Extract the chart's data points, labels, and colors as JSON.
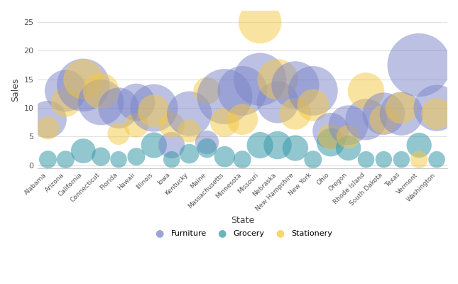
{
  "title": "",
  "xlabel": "State",
  "ylabel": "Sales",
  "ylim": [
    -0.5,
    27
  ],
  "xlim": [
    -0.6,
    22.6
  ],
  "yticks": [
    0,
    5,
    10,
    15,
    20,
    25
  ],
  "bg_color": "#ffffff",
  "grid_color": "#e0e0e0",
  "categories": {
    "Furniture": {
      "color": "#7b85c9",
      "alpha": 0.5
    },
    "Grocery": {
      "color": "#3a9aaa",
      "alpha": 0.55
    },
    "Stationery": {
      "color": "#f5c842",
      "alpha": 0.5
    }
  },
  "states": [
    "Alabama",
    "Arizona",
    "California",
    "Connecticut",
    "Florida",
    "Hawaii",
    "Illinois",
    "Iowa",
    "Kentucky",
    "Maine",
    "Massachusetts",
    "Minnesota",
    "Missouri",
    "Nebraska",
    "New Hampshire",
    "New York",
    "Ohio",
    "Oregon",
    "Rhode Island",
    "South Dakota",
    "Texas",
    "Vermont",
    "Washington"
  ],
  "bubbles": [
    {
      "state": "Alabama",
      "category": "Furniture",
      "sales": 8.0,
      "size": 80
    },
    {
      "state": "Alabama",
      "category": "Grocery",
      "sales": 1.0,
      "size": 18
    },
    {
      "state": "Alabama",
      "category": "Stationery",
      "sales": 6.5,
      "size": 30
    },
    {
      "state": "Arizona",
      "category": "Furniture",
      "sales": 13.0,
      "size": 100
    },
    {
      "state": "Arizona",
      "category": "Grocery",
      "sales": 1.0,
      "size": 18
    },
    {
      "state": "Arizona",
      "category": "Stationery",
      "sales": 11.0,
      "size": 50
    },
    {
      "state": "California",
      "category": "Furniture",
      "sales": 14.0,
      "size": 160
    },
    {
      "state": "California",
      "category": "Grocery",
      "sales": 2.5,
      "size": 35
    },
    {
      "state": "California",
      "category": "Stationery",
      "sales": 15.0,
      "size": 90
    },
    {
      "state": "Connecticut",
      "category": "Furniture",
      "sales": 11.0,
      "size": 120
    },
    {
      "state": "Connecticut",
      "category": "Grocery",
      "sales": 1.5,
      "size": 20
    },
    {
      "state": "Connecticut",
      "category": "Stationery",
      "sales": 13.0,
      "size": 75
    },
    {
      "state": "Florida",
      "category": "Furniture",
      "sales": 10.0,
      "size": 95
    },
    {
      "state": "Florida",
      "category": "Grocery",
      "sales": 1.0,
      "size": 16
    },
    {
      "state": "Florida",
      "category": "Stationery",
      "sales": 5.5,
      "size": 28
    },
    {
      "state": "Hawaii",
      "category": "Furniture",
      "sales": 11.0,
      "size": 80
    },
    {
      "state": "Hawaii",
      "category": "Grocery",
      "sales": 1.5,
      "size": 18
    },
    {
      "state": "Hawaii",
      "category": "Stationery",
      "sales": 7.0,
      "size": 35
    },
    {
      "state": "Illinois",
      "category": "Furniture",
      "sales": 10.0,
      "size": 130
    },
    {
      "state": "Illinois",
      "category": "Grocery",
      "sales": 3.5,
      "size": 38
    },
    {
      "state": "Illinois",
      "category": "Stationery",
      "sales": 9.5,
      "size": 60
    },
    {
      "state": "Iowa",
      "category": "Furniture",
      "sales": 3.5,
      "size": 40
    },
    {
      "state": "Iowa",
      "category": "Grocery",
      "sales": 1.0,
      "size": 16
    },
    {
      "state": "Iowa",
      "category": "Stationery",
      "sales": 7.0,
      "size": 38
    },
    {
      "state": "Kentucky",
      "category": "Furniture",
      "sales": 9.0,
      "size": 115
    },
    {
      "state": "Kentucky",
      "category": "Grocery",
      "sales": 2.0,
      "size": 22
    },
    {
      "state": "Kentucky",
      "category": "Stationery",
      "sales": 6.0,
      "size": 30
    },
    {
      "state": "Maine",
      "category": "Furniture",
      "sales": 4.0,
      "size": 32
    },
    {
      "state": "Maine",
      "category": "Grocery",
      "sales": 3.0,
      "size": 22
    },
    {
      "state": "Maine",
      "category": "Stationery",
      "sales": 13.0,
      "size": 42
    },
    {
      "state": "Massachusetts",
      "category": "Furniture",
      "sales": 12.0,
      "size": 175
    },
    {
      "state": "Massachusetts",
      "category": "Grocery",
      "sales": 1.5,
      "size": 25
    },
    {
      "state": "Massachusetts",
      "category": "Stationery",
      "sales": 7.5,
      "size": 48
    },
    {
      "state": "Minnesota",
      "category": "Furniture",
      "sales": 13.0,
      "size": 140
    },
    {
      "state": "Minnesota",
      "category": "Grocery",
      "sales": 1.0,
      "size": 18
    },
    {
      "state": "Minnesota",
      "category": "Stationery",
      "sales": 8.0,
      "size": 55
    },
    {
      "state": "Missouri",
      "category": "Furniture",
      "sales": 15.0,
      "size": 160
    },
    {
      "state": "Missouri",
      "category": "Grocery",
      "sales": 3.5,
      "size": 40
    },
    {
      "state": "Missouri",
      "category": "Stationery",
      "sales": 25.0,
      "size": 105
    },
    {
      "state": "Nebraska",
      "category": "Furniture",
      "sales": 11.0,
      "size": 100
    },
    {
      "state": "Nebraska",
      "category": "Grocery",
      "sales": 3.5,
      "size": 45
    },
    {
      "state": "Nebraska",
      "category": "Stationery",
      "sales": 15.0,
      "size": 95
    },
    {
      "state": "New Hampshire",
      "category": "Furniture",
      "sales": 14.0,
      "size": 130
    },
    {
      "state": "New Hampshire",
      "category": "Grocery",
      "sales": 3.0,
      "size": 38
    },
    {
      "state": "New Hampshire",
      "category": "Stationery",
      "sales": 9.0,
      "size": 58
    },
    {
      "state": "New York",
      "category": "Furniture",
      "sales": 13.0,
      "size": 140
    },
    {
      "state": "New York",
      "category": "Grocery",
      "sales": 1.0,
      "size": 18
    },
    {
      "state": "New York",
      "category": "Stationery",
      "sales": 10.5,
      "size": 58
    },
    {
      "state": "Ohio",
      "category": "Furniture",
      "sales": 6.0,
      "size": 75
    },
    {
      "state": "Ohio",
      "category": "Grocery",
      "sales": 4.0,
      "size": 46
    },
    {
      "state": "Ohio",
      "category": "Stationery",
      "sales": 5.0,
      "size": 38
    },
    {
      "state": "Oregon",
      "category": "Furniture",
      "sales": 7.0,
      "size": 90
    },
    {
      "state": "Oregon",
      "category": "Grocery",
      "sales": 3.0,
      "size": 36
    },
    {
      "state": "Oregon",
      "category": "Stationery",
      "sales": 5.0,
      "size": 32
    },
    {
      "state": "Rhode Island",
      "category": "Furniture",
      "sales": 8.0,
      "size": 98
    },
    {
      "state": "Rhode Island",
      "category": "Grocery",
      "sales": 1.0,
      "size": 16
    },
    {
      "state": "Rhode Island",
      "category": "Stationery",
      "sales": 13.0,
      "size": 76
    },
    {
      "state": "South Dakota",
      "category": "Furniture",
      "sales": 9.0,
      "size": 102
    },
    {
      "state": "South Dakota",
      "category": "Grocery",
      "sales": 1.0,
      "size": 16
    },
    {
      "state": "South Dakota",
      "category": "Stationery",
      "sales": 8.0,
      "size": 48
    },
    {
      "state": "Texas",
      "category": "Furniture",
      "sales": 9.0,
      "size": 108
    },
    {
      "state": "Texas",
      "category": "Grocery",
      "sales": 1.0,
      "size": 16
    },
    {
      "state": "Texas",
      "category": "Stationery",
      "sales": 10.0,
      "size": 58
    },
    {
      "state": "Vermont",
      "category": "Furniture",
      "sales": 17.5,
      "size": 230
    },
    {
      "state": "Vermont",
      "category": "Grocery",
      "sales": 3.5,
      "size": 36
    },
    {
      "state": "Vermont",
      "category": "Stationery",
      "sales": 1.0,
      "size": 18
    },
    {
      "state": "Washington",
      "category": "Furniture",
      "sales": 10.0,
      "size": 122
    },
    {
      "state": "Washington",
      "category": "Grocery",
      "sales": 1.0,
      "size": 16
    },
    {
      "state": "Washington",
      "category": "Stationery",
      "sales": 9.0,
      "size": 56
    }
  ],
  "legend_labels": [
    "Furniture",
    "Grocery",
    "Stationery"
  ],
  "legend_colors": [
    "#7b85c9",
    "#3a9aaa",
    "#f5c842"
  ]
}
